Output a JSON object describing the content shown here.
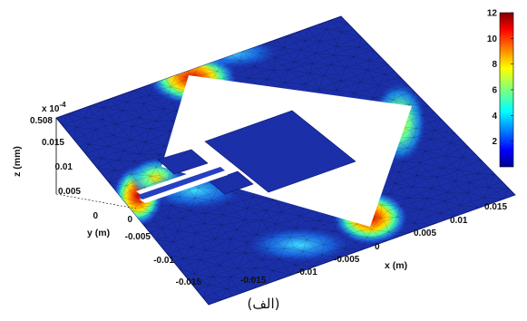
{
  "caption": "(الف)",
  "chart_data": {
    "type": "heatmap",
    "title": "",
    "xlabel": "x (m)",
    "ylabel": "y (m)",
    "zlabel": "z (mm)",
    "x_ticks": [
      "-0.015",
      "-0.01",
      "-0.005",
      "0",
      "0.005",
      "0.01",
      "0.015"
    ],
    "y_ticks": [
      "-0.015",
      "-0.01",
      "-0.005",
      "0",
      "0.005",
      "0.01",
      "0.015"
    ],
    "z_ticks": [
      "0",
      "0.005",
      "0.01",
      "0.015",
      "0.508"
    ],
    "z_exponent": "x 10",
    "z_exponent_power": "-4",
    "colorbar": {
      "ticks": [
        "2",
        "4",
        "6",
        "8",
        "10",
        "12"
      ],
      "range": [
        0,
        12
      ],
      "colormap": "jet"
    },
    "hotspots": [
      {
        "location": "feed edge (left corner)",
        "level": 12
      },
      {
        "location": "slot upper corner",
        "level": 9
      },
      {
        "location": "slot lower corner",
        "level": 10
      },
      {
        "location": "slot right corner",
        "level": 5
      },
      {
        "location": "slot left corner",
        "level": 4
      }
    ]
  },
  "colors": {
    "background_field": "#1b2fa8",
    "mesh": "#000000",
    "slot": "#ffffff"
  }
}
